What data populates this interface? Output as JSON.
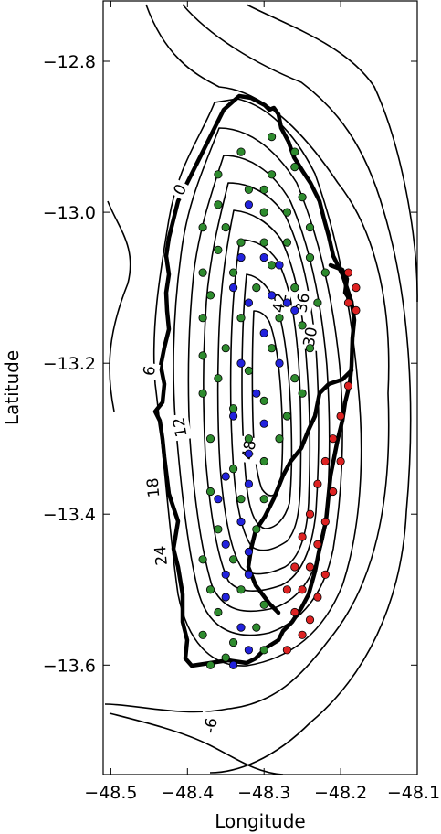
{
  "chart_data": {
    "type": "scatter",
    "title": "",
    "xlabel": "Longitude",
    "ylabel": "Latitude",
    "xlim": [
      -48.51,
      -48.1
    ],
    "ylim": [
      -13.745,
      -12.72
    ],
    "x_ticks": [
      -48.5,
      -48.4,
      -48.3,
      -48.2,
      -48.1
    ],
    "x_tick_labels": [
      "−48.5",
      "−48.4",
      "−48.3",
      "−48.2",
      "−48.1"
    ],
    "y_ticks": [
      -12.8,
      -13.0,
      -13.2,
      -13.4,
      -13.6
    ],
    "y_tick_labels": [
      "−12.8",
      "−13.0",
      "−13.2",
      "−13.4",
      "−13.6"
    ],
    "grid": false,
    "contour_labels": [
      {
        "text": "0",
        "x": -48.41,
        "y": -12.97,
        "rot": -60
      },
      {
        "text": "6",
        "x": -48.45,
        "y": -13.21,
        "rot": -80
      },
      {
        "text": "12",
        "x": -48.41,
        "y": -13.285,
        "rot": -100
      },
      {
        "text": "18",
        "x": -48.445,
        "y": -13.365,
        "rot": -95
      },
      {
        "text": "24",
        "x": -48.435,
        "y": -13.455,
        "rot": -95
      },
      {
        "text": "48",
        "x": -48.32,
        "y": -13.315,
        "rot": -80
      },
      {
        "text": "42",
        "x": -48.28,
        "y": -13.12,
        "rot": -80
      },
      {
        "text": "36",
        "x": -48.25,
        "y": -13.12,
        "rot": -80
      },
      {
        "text": "30",
        "x": -48.24,
        "y": -13.165,
        "rot": -80
      },
      {
        "text": "-6",
        "x": -48.37,
        "y": -13.68,
        "rot": -80
      }
    ],
    "series": [
      {
        "color": "#2e8b2e",
        "points": [
          [
            -48.29,
            -12.9
          ],
          [
            -48.26,
            -12.92
          ],
          [
            -48.33,
            -12.92
          ],
          [
            -48.26,
            -12.94
          ],
          [
            -48.29,
            -12.95
          ],
          [
            -48.36,
            -12.95
          ],
          [
            -48.32,
            -12.97
          ],
          [
            -48.3,
            -12.97
          ],
          [
            -48.25,
            -12.98
          ],
          [
            -48.36,
            -12.99
          ],
          [
            -48.3,
            -13.0
          ],
          [
            -48.27,
            -13.0
          ],
          [
            -48.38,
            -13.02
          ],
          [
            -48.35,
            -13.02
          ],
          [
            -48.24,
            -13.02
          ],
          [
            -48.33,
            -13.04
          ],
          [
            -48.3,
            -13.04
          ],
          [
            -48.27,
            -13.04
          ],
          [
            -48.36,
            -13.05
          ],
          [
            -48.24,
            -13.06
          ],
          [
            -48.38,
            -13.08
          ],
          [
            -48.34,
            -13.08
          ],
          [
            -48.29,
            -13.07
          ],
          [
            -48.22,
            -13.08
          ],
          [
            -48.37,
            -13.11
          ],
          [
            -48.31,
            -13.1
          ],
          [
            -48.26,
            -13.1
          ],
          [
            -48.23,
            -13.12
          ],
          [
            -48.38,
            -13.14
          ],
          [
            -48.33,
            -13.14
          ],
          [
            -48.28,
            -13.14
          ],
          [
            -48.25,
            -13.15
          ],
          [
            -48.35,
            -13.18
          ],
          [
            -48.29,
            -13.18
          ],
          [
            -48.24,
            -13.18
          ],
          [
            -48.38,
            -13.19
          ],
          [
            -48.32,
            -13.21
          ],
          [
            -48.26,
            -13.22
          ],
          [
            -48.36,
            -13.22
          ],
          [
            -48.38,
            -13.24
          ],
          [
            -48.3,
            -13.25
          ],
          [
            -48.25,
            -13.24
          ],
          [
            -48.34,
            -13.26
          ],
          [
            -48.27,
            -13.27
          ],
          [
            -48.37,
            -13.3
          ],
          [
            -48.32,
            -13.3
          ],
          [
            -48.28,
            -13.3
          ],
          [
            -48.34,
            -13.34
          ],
          [
            -48.3,
            -13.33
          ],
          [
            -48.37,
            -13.37
          ],
          [
            -48.33,
            -13.38
          ],
          [
            -48.3,
            -13.38
          ],
          [
            -48.36,
            -13.42
          ],
          [
            -48.31,
            -13.42
          ],
          [
            -48.38,
            -13.46
          ],
          [
            -48.34,
            -13.46
          ],
          [
            -48.37,
            -13.5
          ],
          [
            -48.33,
            -13.5
          ],
          [
            -48.3,
            -13.52
          ],
          [
            -48.36,
            -13.53
          ],
          [
            -48.31,
            -13.55
          ],
          [
            -48.38,
            -13.56
          ],
          [
            -48.34,
            -13.57
          ],
          [
            -48.3,
            -13.58
          ],
          [
            -48.37,
            -13.6
          ],
          [
            -48.35,
            -13.59
          ]
        ]
      },
      {
        "color": "#2222dd",
        "points": [
          [
            -48.32,
            -12.99
          ],
          [
            -48.33,
            -13.06
          ],
          [
            -48.3,
            -13.06
          ],
          [
            -48.28,
            -13.07
          ],
          [
            -48.34,
            -13.1
          ],
          [
            -48.29,
            -13.11
          ],
          [
            -48.27,
            -13.12
          ],
          [
            -48.32,
            -13.12
          ],
          [
            -48.3,
            -13.16
          ],
          [
            -48.26,
            -13.13
          ],
          [
            -48.33,
            -13.2
          ],
          [
            -48.28,
            -13.2
          ],
          [
            -48.31,
            -13.24
          ],
          [
            -48.34,
            -13.27
          ],
          [
            -48.3,
            -13.28
          ],
          [
            -48.32,
            -13.32
          ],
          [
            -48.35,
            -13.35
          ],
          [
            -48.32,
            -13.36
          ],
          [
            -48.36,
            -13.38
          ],
          [
            -48.33,
            -13.41
          ],
          [
            -48.35,
            -13.44
          ],
          [
            -48.32,
            -13.45
          ],
          [
            -48.35,
            -13.48
          ],
          [
            -48.32,
            -13.48
          ],
          [
            -48.35,
            -13.51
          ],
          [
            -48.33,
            -13.55
          ],
          [
            -48.32,
            -13.58
          ],
          [
            -48.34,
            -13.6
          ]
        ]
      },
      {
        "color": "#dd2222",
        "points": [
          [
            -48.19,
            -13.08
          ],
          [
            -48.18,
            -13.1
          ],
          [
            -48.19,
            -13.12
          ],
          [
            -48.18,
            -13.13
          ],
          [
            -48.19,
            -13.23
          ],
          [
            -48.2,
            -13.27
          ],
          [
            -48.21,
            -13.3
          ],
          [
            -48.22,
            -13.33
          ],
          [
            -48.2,
            -13.33
          ],
          [
            -48.23,
            -13.36
          ],
          [
            -48.21,
            -13.37
          ],
          [
            -48.24,
            -13.4
          ],
          [
            -48.22,
            -13.41
          ],
          [
            -48.25,
            -13.43
          ],
          [
            -48.23,
            -13.44
          ],
          [
            -48.26,
            -13.47
          ],
          [
            -48.24,
            -13.47
          ],
          [
            -48.22,
            -13.48
          ],
          [
            -48.27,
            -13.5
          ],
          [
            -48.25,
            -13.5
          ],
          [
            -48.23,
            -13.51
          ],
          [
            -48.26,
            -13.53
          ],
          [
            -48.24,
            -13.54
          ],
          [
            -48.25,
            -13.56
          ],
          [
            -48.27,
            -13.58
          ]
        ]
      }
    ]
  }
}
